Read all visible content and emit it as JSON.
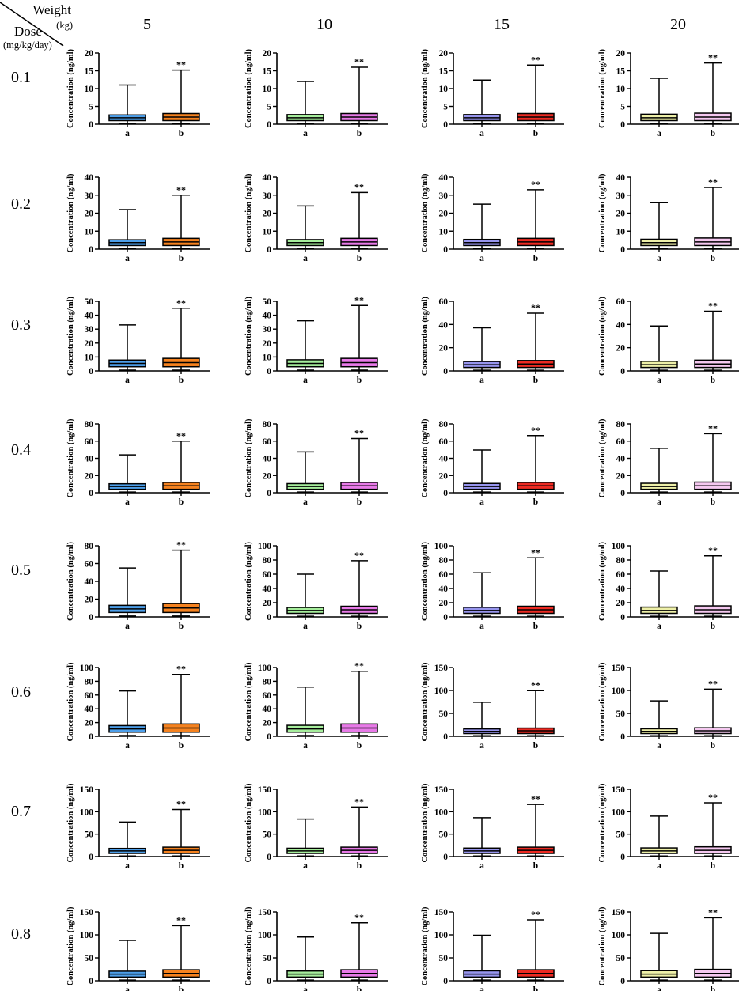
{
  "corner": {
    "top_label": "Weight",
    "top_unit": "(kg)",
    "left_label": "Dose",
    "left_unit": "(mg/kg/day)"
  },
  "colors": {
    "5": "#4d9fea",
    "10": "#a6ee9c",
    "15": "#9795ee",
    "20": "#eef0a8",
    "b5": "#f5821f",
    "b10": "#e87ae8",
    "b15": "#ed2a22",
    "b20": "#f5c8f0"
  },
  "chart_data": {
    "type": "boxplot-grid",
    "column_header": "Weight (kg)",
    "row_header": "Dose (mg/kg/day)",
    "weights": [
      "5",
      "10",
      "15",
      "20"
    ],
    "doses": [
      "0.1",
      "0.2",
      "0.3",
      "0.4",
      "0.5",
      "0.6",
      "0.7",
      "0.8"
    ],
    "ylabel": "Concentration (ng/ml)",
    "categories": [
      "a",
      "b"
    ],
    "significance_mark": "**",
    "panels": [
      {
        "dose": "0.1",
        "weight": "5",
        "ylim": [
          0,
          20
        ],
        "yticks": [
          0,
          5,
          10,
          15,
          20
        ],
        "box_a": {
          "min": 0.2,
          "q1": 1.0,
          "median": 1.8,
          "q3": 2.6,
          "max": 11
        },
        "box_b": {
          "min": 0.2,
          "q1": 1.0,
          "median": 2.0,
          "q3": 3.0,
          "max": 15.2
        }
      },
      {
        "dose": "0.1",
        "weight": "10",
        "ylim": [
          0,
          20
        ],
        "yticks": [
          0,
          5,
          10,
          15,
          20
        ],
        "box_a": {
          "min": 0.2,
          "q1": 1.0,
          "median": 1.8,
          "q3": 2.7,
          "max": 12
        },
        "box_b": {
          "min": 0.2,
          "q1": 1.0,
          "median": 2.0,
          "q3": 3.0,
          "max": 16
        }
      },
      {
        "dose": "0.1",
        "weight": "15",
        "ylim": [
          0,
          20
        ],
        "yticks": [
          0,
          5,
          10,
          15,
          20
        ],
        "box_a": {
          "min": 0.2,
          "q1": 1.0,
          "median": 1.8,
          "q3": 2.7,
          "max": 12.4
        },
        "box_b": {
          "min": 0.2,
          "q1": 1.0,
          "median": 2.0,
          "q3": 3.0,
          "max": 16.6
        }
      },
      {
        "dose": "0.1",
        "weight": "20",
        "ylim": [
          0,
          20
        ],
        "yticks": [
          0,
          5,
          10,
          15,
          20
        ],
        "box_a": {
          "min": 0.2,
          "q1": 1.0,
          "median": 1.8,
          "q3": 2.8,
          "max": 12.9
        },
        "box_b": {
          "min": 0.2,
          "q1": 1.0,
          "median": 2.0,
          "q3": 3.1,
          "max": 17.2
        }
      },
      {
        "dose": "0.2",
        "weight": "5",
        "ylim": [
          0,
          40
        ],
        "yticks": [
          0,
          10,
          20,
          30,
          40
        ],
        "box_a": {
          "min": 0.4,
          "q1": 2.0,
          "median": 3.6,
          "q3": 5.2,
          "max": 22
        },
        "box_b": {
          "min": 0.4,
          "q1": 2.0,
          "median": 4.0,
          "q3": 6.0,
          "max": 30
        }
      },
      {
        "dose": "0.2",
        "weight": "10",
        "ylim": [
          0,
          40
        ],
        "yticks": [
          0,
          10,
          20,
          30,
          40
        ],
        "box_a": {
          "min": 0.4,
          "q1": 2.0,
          "median": 3.6,
          "q3": 5.3,
          "max": 24
        },
        "box_b": {
          "min": 0.4,
          "q1": 2.0,
          "median": 4.0,
          "q3": 6.0,
          "max": 31.5
        }
      },
      {
        "dose": "0.2",
        "weight": "15",
        "ylim": [
          0,
          40
        ],
        "yticks": [
          0,
          10,
          20,
          30,
          40
        ],
        "box_a": {
          "min": 0.4,
          "q1": 2.0,
          "median": 3.6,
          "q3": 5.4,
          "max": 25
        },
        "box_b": {
          "min": 0.4,
          "q1": 2.0,
          "median": 4.0,
          "q3": 6.0,
          "max": 33
        }
      },
      {
        "dose": "0.2",
        "weight": "20",
        "ylim": [
          0,
          40
        ],
        "yticks": [
          0,
          10,
          20,
          30,
          40
        ],
        "box_a": {
          "min": 0.4,
          "q1": 2.0,
          "median": 3.6,
          "q3": 5.5,
          "max": 25.8
        },
        "box_b": {
          "min": 0.4,
          "q1": 2.0,
          "median": 4.0,
          "q3": 6.2,
          "max": 34.3
        }
      },
      {
        "dose": "0.3",
        "weight": "5",
        "ylim": [
          0,
          50
        ],
        "yticks": [
          0,
          10,
          20,
          30,
          40,
          50
        ],
        "box_a": {
          "min": 0.6,
          "q1": 3.0,
          "median": 5.4,
          "q3": 7.8,
          "max": 33
        },
        "box_b": {
          "min": 0.6,
          "q1": 3.0,
          "median": 6.0,
          "q3": 9.0,
          "max": 45
        }
      },
      {
        "dose": "0.3",
        "weight": "10",
        "ylim": [
          0,
          50
        ],
        "yticks": [
          0,
          10,
          20,
          30,
          40,
          50
        ],
        "box_a": {
          "min": 0.6,
          "q1": 3.0,
          "median": 5.4,
          "q3": 8.0,
          "max": 36
        },
        "box_b": {
          "min": 0.6,
          "q1": 3.0,
          "median": 6.0,
          "q3": 9.0,
          "max": 47
        }
      },
      {
        "dose": "0.3",
        "weight": "15",
        "ylim": [
          0,
          60
        ],
        "yticks": [
          0,
          20,
          40,
          60
        ],
        "box_a": {
          "min": 0.6,
          "q1": 3.0,
          "median": 5.4,
          "q3": 8.1,
          "max": 37.2
        },
        "box_b": {
          "min": 0.6,
          "q1": 3.0,
          "median": 6.0,
          "q3": 9.0,
          "max": 49.8
        }
      },
      {
        "dose": "0.3",
        "weight": "20",
        "ylim": [
          0,
          60
        ],
        "yticks": [
          0,
          20,
          40,
          60
        ],
        "box_a": {
          "min": 0.6,
          "q1": 3.0,
          "median": 5.4,
          "q3": 8.3,
          "max": 38.7
        },
        "box_b": {
          "min": 0.6,
          "q1": 3.0,
          "median": 6.0,
          "q3": 9.3,
          "max": 51.5
        }
      },
      {
        "dose": "0.4",
        "weight": "5",
        "ylim": [
          0,
          80
        ],
        "yticks": [
          0,
          20,
          40,
          60,
          80
        ],
        "box_a": {
          "min": 0.8,
          "q1": 4.0,
          "median": 7.2,
          "q3": 10.4,
          "max": 44
        },
        "box_b": {
          "min": 0.8,
          "q1": 4.0,
          "median": 8.0,
          "q3": 12.0,
          "max": 60
        }
      },
      {
        "dose": "0.4",
        "weight": "10",
        "ylim": [
          0,
          80
        ],
        "yticks": [
          0,
          20,
          40,
          60,
          80
        ],
        "box_a": {
          "min": 0.8,
          "q1": 4.0,
          "median": 7.2,
          "q3": 10.6,
          "max": 47.5
        },
        "box_b": {
          "min": 0.8,
          "q1": 4.0,
          "median": 8.0,
          "q3": 12.0,
          "max": 63
        }
      },
      {
        "dose": "0.4",
        "weight": "15",
        "ylim": [
          0,
          80
        ],
        "yticks": [
          0,
          20,
          40,
          60,
          80
        ],
        "box_a": {
          "min": 0.8,
          "q1": 4.0,
          "median": 7.2,
          "q3": 10.8,
          "max": 49.6
        },
        "box_b": {
          "min": 0.8,
          "q1": 4.0,
          "median": 8.0,
          "q3": 12.0,
          "max": 66.4
        }
      },
      {
        "dose": "0.4",
        "weight": "20",
        "ylim": [
          0,
          80
        ],
        "yticks": [
          0,
          20,
          40,
          60,
          80
        ],
        "box_a": {
          "min": 0.8,
          "q1": 4.0,
          "median": 7.2,
          "q3": 11.0,
          "max": 51.6
        },
        "box_b": {
          "min": 0.8,
          "q1": 4.0,
          "median": 8.0,
          "q3": 12.4,
          "max": 68.6
        }
      },
      {
        "dose": "0.5",
        "weight": "5",
        "ylim": [
          0,
          80
        ],
        "yticks": [
          0,
          20,
          40,
          60,
          80
        ],
        "box_a": {
          "min": 1.0,
          "q1": 5.0,
          "median": 9.0,
          "q3": 13.0,
          "max": 55
        },
        "box_b": {
          "min": 1.0,
          "q1": 5.0,
          "median": 10.0,
          "q3": 15.0,
          "max": 75
        }
      },
      {
        "dose": "0.5",
        "weight": "10",
        "ylim": [
          0,
          100
        ],
        "yticks": [
          0,
          20,
          40,
          60,
          80,
          100
        ],
        "box_a": {
          "min": 1.0,
          "q1": 5.0,
          "median": 9.0,
          "q3": 13.3,
          "max": 60
        },
        "box_b": {
          "min": 1.0,
          "q1": 5.0,
          "median": 10.0,
          "q3": 15.0,
          "max": 79
        }
      },
      {
        "dose": "0.5",
        "weight": "15",
        "ylim": [
          0,
          100
        ],
        "yticks": [
          0,
          20,
          40,
          60,
          80,
          100
        ],
        "box_a": {
          "min": 1.0,
          "q1": 5.0,
          "median": 9.0,
          "q3": 13.5,
          "max": 62
        },
        "box_b": {
          "min": 1.0,
          "q1": 5.0,
          "median": 10.0,
          "q3": 15.0,
          "max": 83
        }
      },
      {
        "dose": "0.5",
        "weight": "20",
        "ylim": [
          0,
          100
        ],
        "yticks": [
          0,
          20,
          40,
          60,
          80,
          100
        ],
        "box_a": {
          "min": 1.0,
          "q1": 5.0,
          "median": 9.0,
          "q3": 13.8,
          "max": 64.5
        },
        "box_b": {
          "min": 1.0,
          "q1": 5.0,
          "median": 10.0,
          "q3": 15.5,
          "max": 85.8
        }
      },
      {
        "dose": "0.6",
        "weight": "5",
        "ylim": [
          0,
          100
        ],
        "yticks": [
          0,
          20,
          40,
          60,
          80,
          100
        ],
        "box_a": {
          "min": 1.2,
          "q1": 6.0,
          "median": 10.8,
          "q3": 15.6,
          "max": 66
        },
        "box_b": {
          "min": 1.2,
          "q1": 6.0,
          "median": 12.0,
          "q3": 18.0,
          "max": 90
        }
      },
      {
        "dose": "0.6",
        "weight": "10",
        "ylim": [
          0,
          100
        ],
        "yticks": [
          0,
          20,
          40,
          60,
          80,
          100
        ],
        "box_a": {
          "min": 1.2,
          "q1": 6.0,
          "median": 10.8,
          "q3": 16.0,
          "max": 71.5
        },
        "box_b": {
          "min": 1.2,
          "q1": 6.0,
          "median": 12.0,
          "q3": 18.0,
          "max": 94.6
        }
      },
      {
        "dose": "0.6",
        "weight": "15",
        "ylim": [
          0,
          150
        ],
        "yticks": [
          0,
          50,
          100,
          150
        ],
        "box_a": {
          "min": 1.2,
          "q1": 6.0,
          "median": 10.8,
          "q3": 16.2,
          "max": 74.4
        },
        "box_b": {
          "min": 1.2,
          "q1": 6.0,
          "median": 12.0,
          "q3": 18.0,
          "max": 99.6
        }
      },
      {
        "dose": "0.6",
        "weight": "20",
        "ylim": [
          0,
          150
        ],
        "yticks": [
          0,
          50,
          100,
          150
        ],
        "box_a": {
          "min": 1.2,
          "q1": 6.0,
          "median": 10.8,
          "q3": 16.5,
          "max": 77.4
        },
        "box_b": {
          "min": 1.2,
          "q1": 6.0,
          "median": 12.0,
          "q3": 18.6,
          "max": 102.9
        }
      },
      {
        "dose": "0.7",
        "weight": "5",
        "ylim": [
          0,
          150
        ],
        "yticks": [
          0,
          50,
          100,
          150
        ],
        "box_a": {
          "min": 1.4,
          "q1": 7.0,
          "median": 12.6,
          "q3": 18.2,
          "max": 77
        },
        "box_b": {
          "min": 1.4,
          "q1": 7.0,
          "median": 14.0,
          "q3": 21.0,
          "max": 105
        }
      },
      {
        "dose": "0.7",
        "weight": "10",
        "ylim": [
          0,
          150
        ],
        "yticks": [
          0,
          50,
          100,
          150
        ],
        "box_a": {
          "min": 1.4,
          "q1": 7.0,
          "median": 12.6,
          "q3": 18.6,
          "max": 83.5
        },
        "box_b": {
          "min": 1.4,
          "q1": 7.0,
          "median": 14.0,
          "q3": 21.0,
          "max": 110.5
        }
      },
      {
        "dose": "0.7",
        "weight": "15",
        "ylim": [
          0,
          150
        ],
        "yticks": [
          0,
          50,
          100,
          150
        ],
        "box_a": {
          "min": 1.4,
          "q1": 7.0,
          "median": 12.6,
          "q3": 18.9,
          "max": 86.8
        },
        "box_b": {
          "min": 1.4,
          "q1": 7.0,
          "median": 14.0,
          "q3": 21.0,
          "max": 116.2
        }
      },
      {
        "dose": "0.7",
        "weight": "20",
        "ylim": [
          0,
          150
        ],
        "yticks": [
          0,
          50,
          100,
          150
        ],
        "box_a": {
          "min": 1.4,
          "q1": 7.0,
          "median": 12.6,
          "q3": 19.3,
          "max": 90.3
        },
        "box_b": {
          "min": 1.4,
          "q1": 7.0,
          "median": 14.0,
          "q3": 21.7,
          "max": 120
        }
      },
      {
        "dose": "0.8",
        "weight": "5",
        "ylim": [
          0,
          150
        ],
        "yticks": [
          0,
          50,
          100,
          150
        ],
        "box_a": {
          "min": 1.6,
          "q1": 8.0,
          "median": 14.4,
          "q3": 20.8,
          "max": 88
        },
        "box_b": {
          "min": 1.6,
          "q1": 8.0,
          "median": 16.0,
          "q3": 24.0,
          "max": 120
        }
      },
      {
        "dose": "0.8",
        "weight": "10",
        "ylim": [
          0,
          150
        ],
        "yticks": [
          0,
          50,
          100,
          150
        ],
        "box_a": {
          "min": 1.6,
          "q1": 8.0,
          "median": 14.4,
          "q3": 21.2,
          "max": 95.3
        },
        "box_b": {
          "min": 1.6,
          "q1": 8.0,
          "median": 16.0,
          "q3": 24.0,
          "max": 126.2
        }
      },
      {
        "dose": "0.8",
        "weight": "15",
        "ylim": [
          0,
          150
        ],
        "yticks": [
          0,
          50,
          100,
          150
        ],
        "box_a": {
          "min": 1.6,
          "q1": 8.0,
          "median": 14.4,
          "q3": 21.6,
          "max": 99.2
        },
        "box_b": {
          "min": 1.6,
          "q1": 8.0,
          "median": 16.0,
          "q3": 24.0,
          "max": 132.8
        }
      },
      {
        "dose": "0.8",
        "weight": "20",
        "ylim": [
          0,
          150
        ],
        "yticks": [
          0,
          50,
          100,
          150
        ],
        "box_a": {
          "min": 1.6,
          "q1": 8.0,
          "median": 14.4,
          "q3": 22.0,
          "max": 103.2
        },
        "box_b": {
          "min": 1.6,
          "q1": 8.0,
          "median": 16.0,
          "q3": 24.8,
          "max": 137.2
        }
      }
    ]
  }
}
